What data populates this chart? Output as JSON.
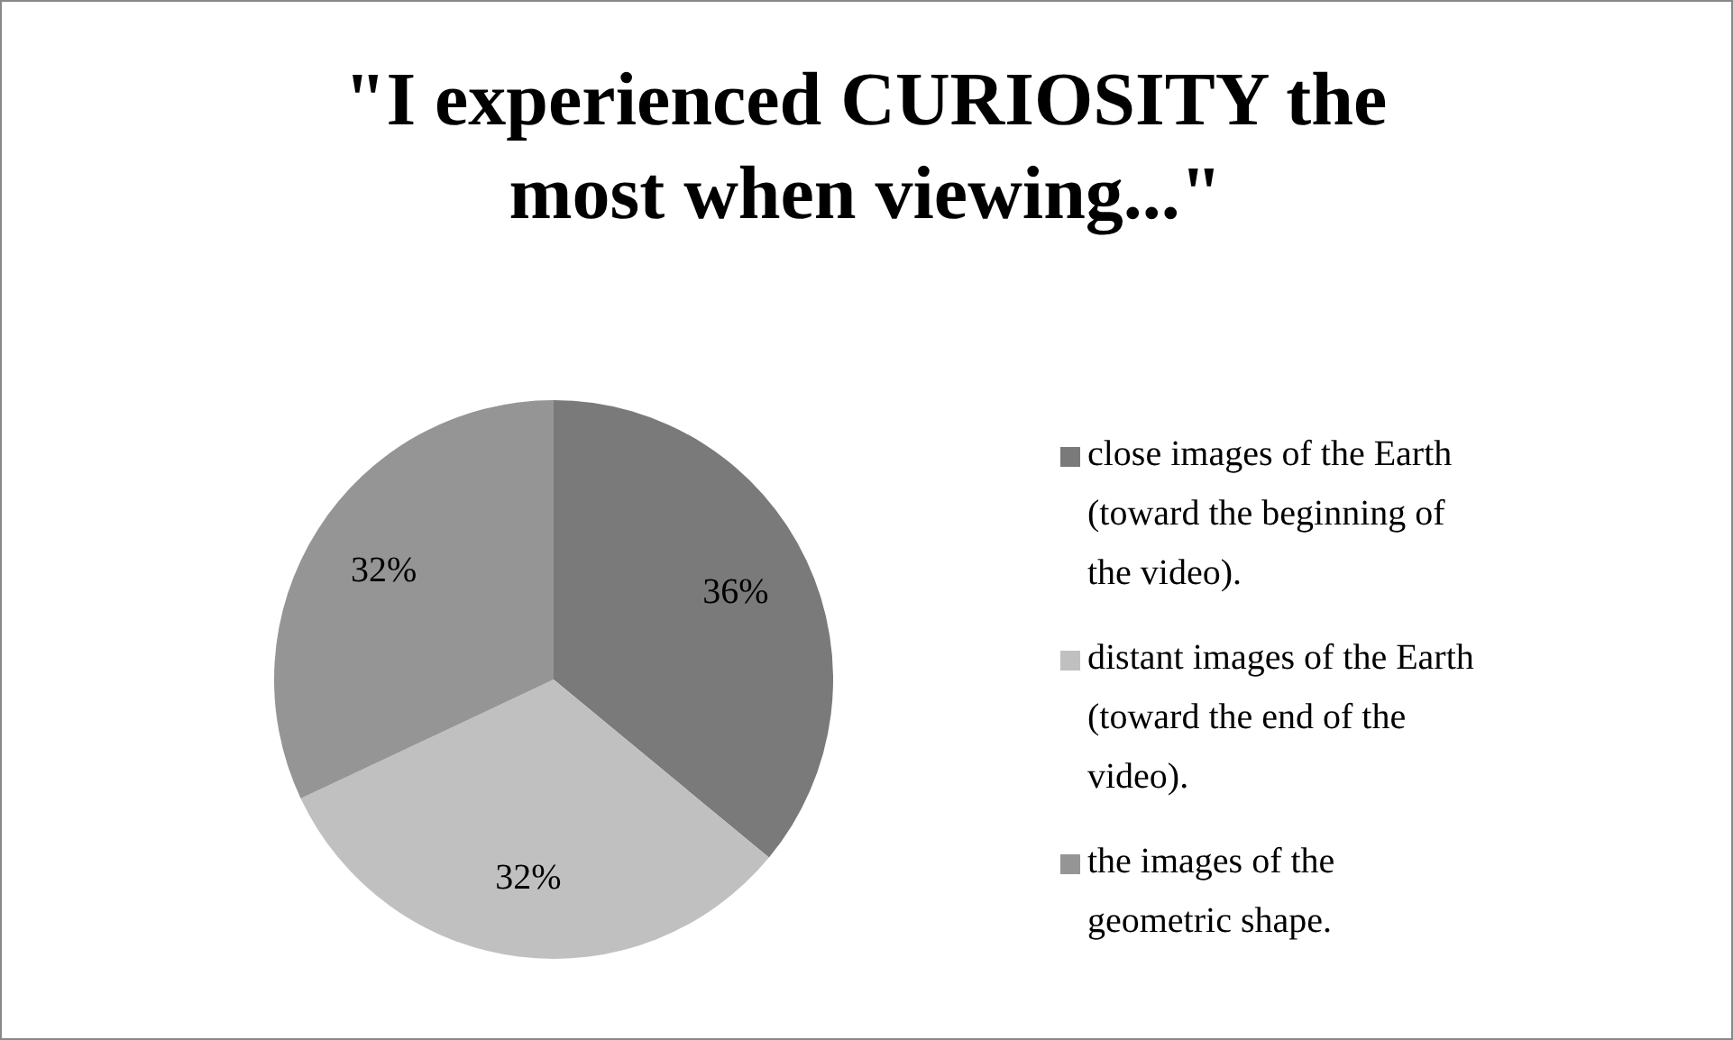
{
  "chart_data": {
    "type": "pie",
    "title": "\"I experienced CURIOSITY the most when viewing...\"",
    "categories": [
      "close images of the Earth (toward the beginning of the video).",
      "distant images of the Earth (toward the end of the video).",
      "the images of the geometric shape."
    ],
    "values": [
      36,
      32,
      32
    ],
    "colors": [
      "#7a7a7a",
      "#c0c0c0",
      "#959595"
    ],
    "value_labels": [
      "36%",
      "32%",
      "32%"
    ],
    "legend": "right"
  }
}
